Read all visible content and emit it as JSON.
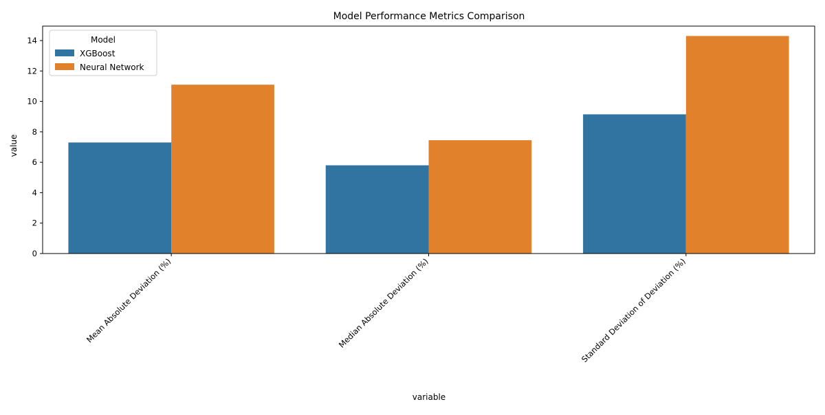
{
  "chart_data": {
    "type": "bar",
    "title": "Model Performance Metrics Comparison",
    "xlabel": "variable",
    "ylabel": "value",
    "categories": [
      "Mean Absolute Deviation (%)",
      "Median Absolute Deviation (%)",
      "Standard Deviation of Deviation (%)"
    ],
    "series": [
      {
        "name": "XGBoost",
        "color": "#3274a1",
        "values": [
          7.3,
          5.8,
          9.15
        ]
      },
      {
        "name": "Neural Network",
        "color": "#e1812c",
        "values": [
          11.1,
          7.45,
          14.3
        ]
      }
    ],
    "ylim": [
      0,
      14.95
    ],
    "yticks": [
      0,
      2,
      4,
      6,
      8,
      10,
      12,
      14
    ],
    "grid": false,
    "legend": {
      "title": "Model",
      "position": "top-left"
    }
  }
}
